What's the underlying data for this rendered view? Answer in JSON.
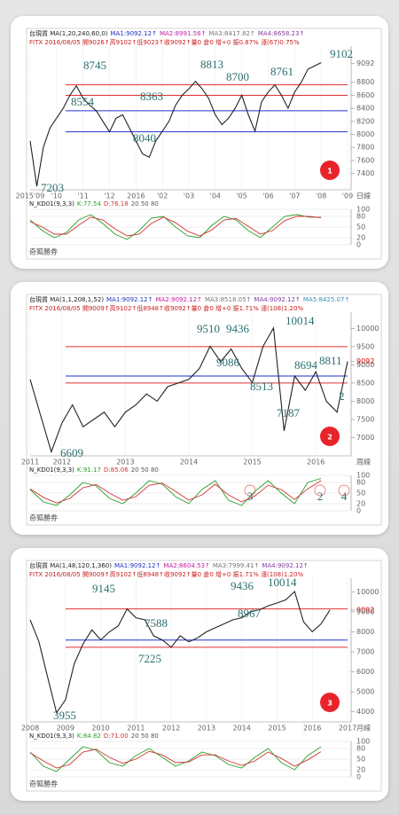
{
  "chart_data": [
    {
      "type": "line",
      "badge": "1",
      "header": [
        "台現貨 MA(1,20,240,60,0)",
        "MA1:9092.12↑",
        "MA2:8991.56↑",
        "MA3:8417.82↑",
        "MA4:8658.23↑"
      ],
      "subheader": "FITX 2016/08/05 開9026↑高9102↑低9023↑收9092↑量0 倉0 增+0 振0.87% 漲(67)0.75%",
      "categories": [
        "2015'09",
        null,
        null,
        null,
        "'10",
        null,
        null,
        null,
        "'11",
        null,
        null,
        null,
        "'12",
        null,
        null,
        null,
        "2016",
        null,
        null,
        null,
        "'02",
        null,
        null,
        null,
        "'03",
        null,
        null,
        null,
        "'04",
        null,
        null,
        null,
        "'05",
        null,
        null,
        null,
        "'06",
        null,
        null,
        null,
        "'07",
        null,
        null,
        null,
        "'08",
        null,
        null,
        null,
        "'09"
      ],
      "x_unit": "日線",
      "values": [
        7900,
        7203,
        7800,
        8100,
        8250,
        8400,
        8600,
        8745,
        8554,
        8450,
        8363,
        8200,
        8040,
        8250,
        8300,
        8100,
        7900,
        7700,
        7650,
        7900,
        8050,
        8200,
        8450,
        8600,
        8700,
        8813,
        8700,
        8550,
        8300,
        8150,
        8250,
        8400,
        8600,
        8300,
        8050,
        8500,
        8650,
        8761,
        8600,
        8400,
        8650,
        8800,
        9000,
        9050,
        9102,
        null,
        null,
        null,
        null
      ],
      "color": "#222222",
      "ylim": [
        7150,
        9300
      ],
      "yticks": [
        9092,
        8800,
        8600,
        8400,
        8200,
        8000,
        7800,
        7600,
        7400
      ],
      "levels": [
        {
          "value": 8760,
          "color": "#e03030"
        },
        {
          "value": 8600,
          "color": "#e03030"
        },
        {
          "value": 8363,
          "color": "#2030d0"
        },
        {
          "value": 8040,
          "color": "#2030d0"
        }
      ],
      "annotations": [
        "7203",
        "8745",
        "8554",
        "8363",
        "8040",
        "8813",
        "8700",
        "8761",
        "9102"
      ],
      "kd": {
        "title": "N_KD01(9,3,3)",
        "k": "K:77.54",
        "d": "D:76.18",
        "levels": "20 50 80",
        "ylim": [
          0,
          100
        ],
        "yticks": [
          100,
          80,
          50,
          20,
          0
        ],
        "series": [
          {
            "color": "#2a9d2a",
            "values": [
              70,
              40,
              20,
              35,
              70,
              85,
              60,
              30,
              15,
              40,
              75,
              80,
              50,
              25,
              20,
              55,
              80,
              70,
              40,
              20,
              50,
              80,
              85,
              78,
              77.54
            ]
          },
          {
            "color": "#d33333",
            "values": [
              65,
              50,
              30,
              30,
              55,
              78,
              70,
              45,
              25,
              30,
              60,
              78,
              62,
              38,
              25,
              42,
              70,
              74,
              52,
              30,
              40,
              68,
              80,
              80,
              76.18
            ]
          }
        ]
      },
      "footer": "奇狐勝券"
    },
    {
      "type": "line",
      "badge": "2",
      "header": [
        "台現貨 MA(1,1,208,1,52)",
        "MA1:9092.12↑",
        "MA2:9092.12↑",
        "MA3:8518.05↑",
        "MA4:9092.12↑",
        "MA5:8425.07↑"
      ],
      "subheader": "FITX 2016/08/05 開9009↑高9102↑低8948↑收9092↑量0 倉0 增+0 振1.71% 漲(108)1.20%",
      "categories": [
        "2011",
        null,
        null,
        "2012",
        null,
        null,
        null,
        null,
        null,
        "2013",
        null,
        null,
        null,
        null,
        null,
        "2014",
        null,
        null,
        null,
        null,
        null,
        "2015",
        null,
        null,
        null,
        null,
        null,
        "2016",
        null,
        null,
        null
      ],
      "x_unit": "周線",
      "values": [
        8600,
        7600,
        6609,
        7400,
        7900,
        7300,
        7500,
        7700,
        7300,
        7700,
        7900,
        8200,
        8000,
        8400,
        8500,
        8600,
        8900,
        9510,
        9086,
        9436,
        8900,
        8513,
        9500,
        10014,
        7187,
        8694,
        8300,
        8811,
        8000,
        7700,
        9092
      ],
      "color": "#222222",
      "ylim": [
        6500,
        10350
      ],
      "yticks": [
        10000,
        9500,
        9092,
        9000,
        8500,
        8000,
        7500,
        7000
      ],
      "levels": [
        {
          "value": 9500,
          "color": "#e03030"
        },
        {
          "value": 8500,
          "color": "#e03030"
        },
        {
          "value": 8694,
          "color": "#2030d0"
        }
      ],
      "annotations": [
        "9510",
        "9436",
        "10014",
        "9086",
        "8513",
        "8694",
        "8811",
        "7187",
        "6609",
        "2"
      ],
      "kd": {
        "title": "N_KD01(9,3,3)",
        "k": "K:91.17",
        "d": "D:85.06",
        "levels": "20 50 80",
        "ylim": [
          0,
          100
        ],
        "yticks": [
          100,
          80,
          50,
          20,
          0
        ],
        "annotations": [
          "3",
          "2",
          "4"
        ],
        "series": [
          {
            "color": "#2a9d2a",
            "values": [
              60,
              25,
              15,
              45,
              80,
              70,
              35,
              20,
              50,
              85,
              75,
              40,
              20,
              60,
              85,
              30,
              15,
              55,
              85,
              50,
              20,
              80,
              91.17
            ]
          },
          {
            "color": "#d33333",
            "values": [
              62,
              38,
              22,
              35,
              65,
              74,
              50,
              30,
              40,
              72,
              78,
              55,
              30,
              45,
              75,
              45,
              25,
              42,
              72,
              60,
              32,
              62,
              85.06
            ]
          }
        ]
      },
      "footer": "奇狐勝券"
    },
    {
      "type": "line",
      "badge": "3",
      "header": [
        "台現貨 MA(1,48,120,1,360)",
        "MA1:9092.12↑",
        "MA2:8604.53↑",
        "MA3:7999.41↑",
        "MA4:9092.12↑"
      ],
      "subheader": "FITX 2016/08/05 開9009↑高9102↑低8948↑收9092↑量0 倉0 增+0 振1.71% 漲(108)1.20%",
      "categories": [
        "2008",
        null,
        null,
        null,
        "2009",
        null,
        null,
        null,
        "2010",
        null,
        null,
        null,
        "2011",
        null,
        null,
        null,
        "2012",
        null,
        null,
        null,
        "2013",
        null,
        null,
        null,
        "2014",
        null,
        null,
        null,
        "2015",
        null,
        null,
        null,
        "2016",
        null,
        null,
        null,
        "2017"
      ],
      "x_unit": "月線",
      "values": [
        8600,
        7500,
        5700,
        3955,
        4600,
        6400,
        7400,
        8100,
        7600,
        8000,
        8300,
        9145,
        8700,
        8600,
        7800,
        7588,
        7225,
        7800,
        7500,
        7700,
        8000,
        8200,
        8400,
        8600,
        8700,
        9000,
        9100,
        9300,
        9436,
        9600,
        10014,
        8500,
        8000,
        8400,
        9092,
        null,
        null
      ],
      "color": "#222222",
      "ylim": [
        3500,
        10500
      ],
      "yticks": [
        10000,
        9092,
        9000,
        8000,
        7000,
        6000,
        5000,
        4000
      ],
      "levels": [
        {
          "value": 9145,
          "color": "#e03030"
        },
        {
          "value": 7225,
          "color": "#e03030"
        },
        {
          "value": 7588,
          "color": "#2030d0"
        }
      ],
      "annotations": [
        "9145",
        "7588",
        "7225",
        "9436",
        "10014",
        "8967",
        "3955"
      ],
      "kd": {
        "title": "N_KD01(9,3,3)",
        "k": "K:84.82",
        "d": "D:71.00",
        "levels": "20 50 80",
        "ylim": [
          0,
          100
        ],
        "yticks": [
          100,
          80,
          50,
          20,
          0
        ],
        "series": [
          {
            "color": "#2a9d2a",
            "values": [
              70,
              30,
              15,
              50,
              85,
              75,
              40,
              30,
              60,
              80,
              55,
              30,
              45,
              70,
              60,
              35,
              25,
              55,
              80,
              40,
              20,
              60,
              84.82
            ]
          },
          {
            "color": "#d33333",
            "values": [
              68,
              45,
              25,
              35,
              70,
              78,
              55,
              38,
              50,
              72,
              62,
              40,
              42,
              62,
              62,
              45,
              32,
              45,
              70,
              52,
              30,
              48,
              71.0
            ]
          }
        ]
      },
      "footer": "奇狐勝券"
    }
  ]
}
